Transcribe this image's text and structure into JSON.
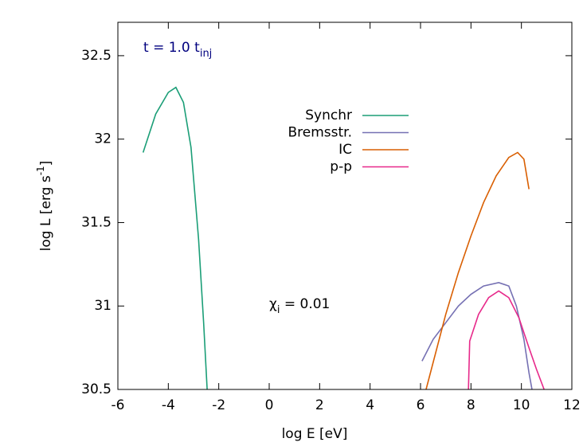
{
  "chart_data": {
    "type": "line",
    "x_label": "log E [eV]",
    "y_label": {
      "text": "log L [erg s",
      "sup": "-1",
      "end": "]"
    },
    "xlim": [
      -6,
      12
    ],
    "ylim": [
      30.5,
      32.7
    ],
    "xticks": [
      -6,
      -4,
      -2,
      0,
      2,
      4,
      6,
      8,
      10,
      12
    ],
    "yticks": [
      30.5,
      31,
      31.5,
      32,
      32.5
    ],
    "annotations": [
      {
        "text": "t = 1.0 t",
        "sub": "inj",
        "color": "#00007f"
      },
      {
        "text": "χ",
        "sub": "i",
        "end": " = 0.01",
        "color": "#000000"
      }
    ],
    "legend": "top-center",
    "series": [
      {
        "name": "Synchr",
        "color": "#1b9e77",
        "x": [
          -5,
          -4.5,
          -4,
          -3.7,
          -3.4,
          -3.1,
          -2.8,
          -2.6,
          -2.46
        ],
        "values": [
          31.92,
          32.15,
          32.28,
          32.31,
          32.22,
          31.95,
          31.4,
          30.9,
          30.5
        ]
      },
      {
        "name": "Bremsstr.",
        "color": "#7570b3",
        "x": [
          6.06,
          6.5,
          7,
          7.5,
          8,
          8.5,
          9.1,
          9.5,
          9.8,
          10.1,
          10.3,
          10.42
        ],
        "values": [
          30.67,
          30.8,
          30.9,
          31.0,
          31.07,
          31.12,
          31.14,
          31.12,
          31.0,
          30.8,
          30.6,
          30.5
        ]
      },
      {
        "name": "IC",
        "color": "#d95f02",
        "x": [
          6.22,
          7,
          7.5,
          8,
          8.5,
          9,
          9.5,
          9.85,
          10.1,
          10.3
        ],
        "values": [
          30.5,
          30.95,
          31.2,
          31.42,
          31.62,
          31.78,
          31.89,
          31.92,
          31.88,
          31.7
        ]
      },
      {
        "name": "p-p",
        "color": "#e7298a",
        "x": [
          7.9,
          7.95,
          8.3,
          8.7,
          9.1,
          9.5,
          9.9,
          10.3,
          10.6,
          10.9
        ],
        "values": [
          30.5,
          30.79,
          30.95,
          31.05,
          31.09,
          31.05,
          30.93,
          30.75,
          30.62,
          30.5
        ]
      }
    ]
  }
}
